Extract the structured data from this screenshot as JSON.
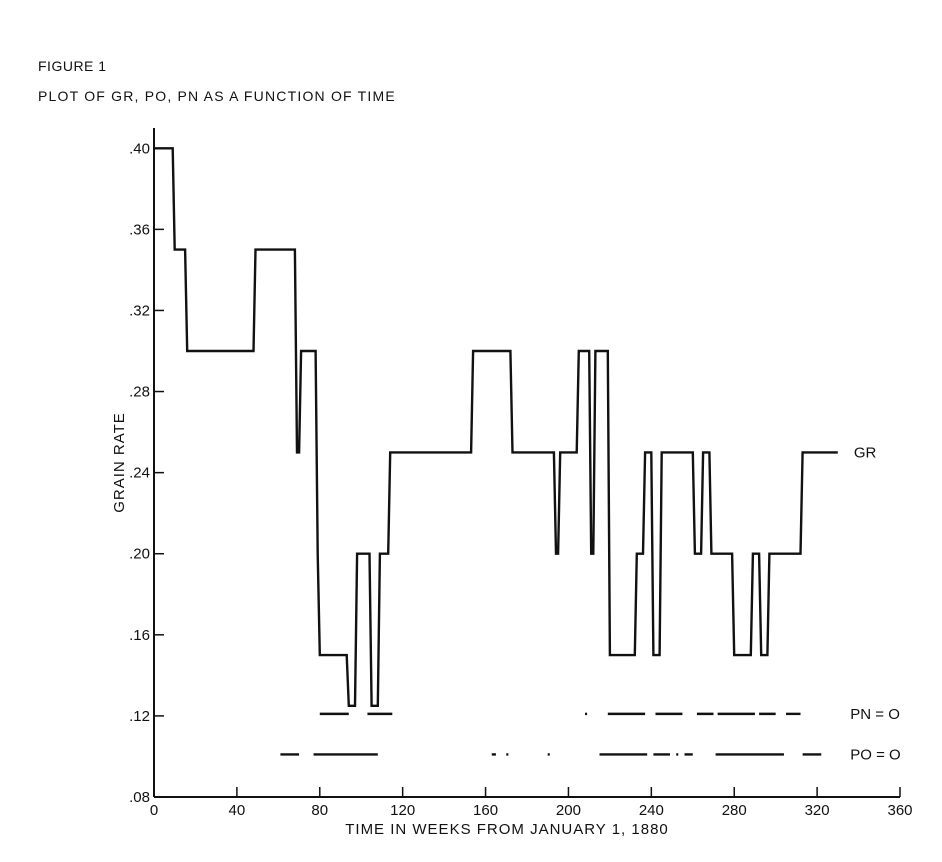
{
  "figure_label": "FIGURE 1",
  "figure_title": "PLOT OF GR, PO, PN AS A FUNCTION OF TIME",
  "chart_data": {
    "type": "line",
    "xlabel": "TIME IN WEEKS FROM JANUARY 1, 1880",
    "ylabel": "GRAIN RATE",
    "xlim": [
      0,
      360
    ],
    "ylim": [
      0.08,
      0.41
    ],
    "x_ticks": [
      0,
      40,
      80,
      120,
      160,
      200,
      240,
      280,
      320,
      360
    ],
    "x_tick_labels": [
      "0",
      "40",
      "80",
      "120",
      "160",
      "200",
      "240",
      "280",
      "320",
      "360"
    ],
    "y_ticks": [
      0.08,
      0.12,
      0.16,
      0.2,
      0.24,
      0.28,
      0.32,
      0.36,
      0.4
    ],
    "y_tick_labels": [
      ".08",
      ".12",
      ".16",
      ".20",
      ".24",
      ".28",
      ".32",
      ".36",
      ".40"
    ],
    "grid": false,
    "series": [
      {
        "name": "GR",
        "label": "GR",
        "kind": "step",
        "x": [
          0,
          9,
          10,
          15,
          16,
          48,
          49,
          68,
          69,
          70,
          71,
          78,
          79,
          80,
          81,
          93,
          94,
          97,
          98,
          104,
          105,
          108,
          109,
          113,
          114,
          153,
          154,
          172,
          173,
          193,
          194,
          195,
          196,
          204,
          205,
          210,
          211,
          212,
          213,
          219,
          220,
          232,
          233,
          236,
          237,
          240,
          241,
          244,
          245,
          249,
          250,
          260,
          261,
          264,
          265,
          268,
          269,
          272,
          273,
          279,
          280,
          288,
          289,
          292,
          293,
          296,
          297,
          302,
          303,
          312,
          313,
          330
        ],
        "y": [
          0.4,
          0.4,
          0.35,
          0.35,
          0.3,
          0.3,
          0.35,
          0.35,
          0.25,
          0.25,
          0.3,
          0.3,
          0.2,
          0.15,
          0.15,
          0.15,
          0.125,
          0.125,
          0.2,
          0.2,
          0.125,
          0.125,
          0.2,
          0.2,
          0.25,
          0.25,
          0.3,
          0.3,
          0.25,
          0.25,
          0.2,
          0.2,
          0.25,
          0.25,
          0.3,
          0.3,
          0.2,
          0.2,
          0.3,
          0.3,
          0.15,
          0.15,
          0.2,
          0.2,
          0.25,
          0.25,
          0.15,
          0.15,
          0.25,
          0.25,
          0.25,
          0.25,
          0.2,
          0.2,
          0.25,
          0.25,
          0.2,
          0.2,
          0.2,
          0.2,
          0.15,
          0.15,
          0.2,
          0.2,
          0.15,
          0.15,
          0.2,
          0.2,
          0.2,
          0.2,
          0.25,
          0.25
        ]
      },
      {
        "name": "PN = O",
        "label": "PN = O",
        "kind": "interval_bars",
        "y_level": 0.121,
        "intervals": [
          [
            80,
            94
          ],
          [
            103,
            115
          ],
          [
            208,
            209
          ],
          [
            219,
            237
          ],
          [
            242,
            255
          ],
          [
            262,
            270
          ],
          [
            272,
            290
          ],
          [
            292,
            300
          ],
          [
            305,
            312
          ]
        ]
      },
      {
        "name": "PO = O",
        "label": "PO = O",
        "kind": "interval_bars",
        "y_level": 0.101,
        "intervals": [
          [
            61,
            70
          ],
          [
            77,
            108
          ],
          [
            163,
            165
          ],
          [
            170,
            171
          ],
          [
            190,
            191
          ],
          [
            215,
            238
          ],
          [
            241,
            249
          ],
          [
            252,
            253
          ],
          [
            256,
            260
          ],
          [
            271,
            304
          ],
          [
            313,
            322
          ]
        ]
      }
    ]
  }
}
